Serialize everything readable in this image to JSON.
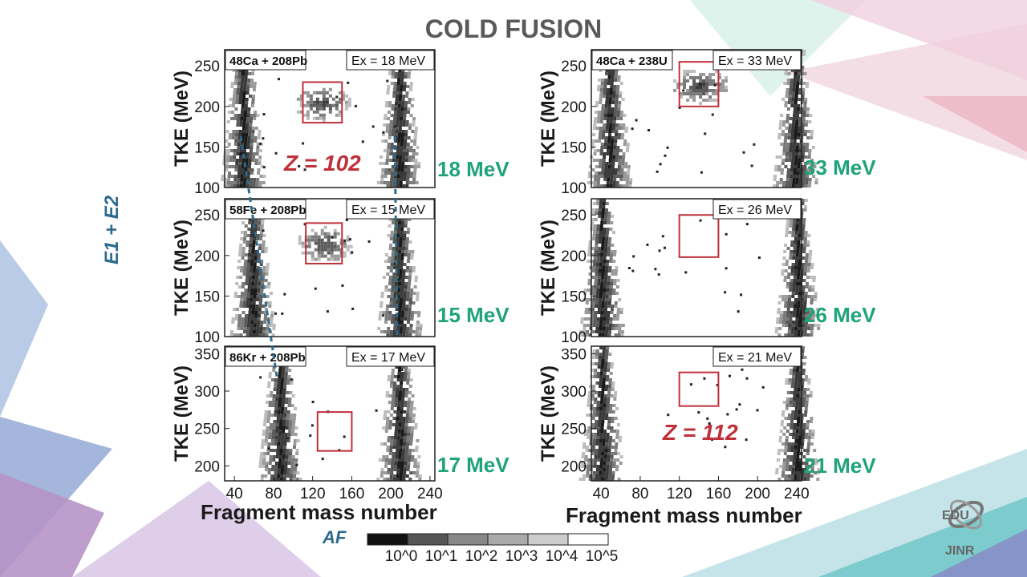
{
  "slide": {
    "title": "COLD FUSION",
    "y_axis_annotation": "E1 + E2",
    "x_axis_annotation": "AF",
    "logo_text_top": "EDU",
    "logo_text_bottom": "JINR"
  },
  "colorbar": {
    "ticks": [
      "10^0",
      "10^1",
      "10^2",
      "10^3",
      "10^4",
      "10^5"
    ],
    "colors": [
      "#111111",
      "#555555",
      "#888888",
      "#aaaaaa",
      "#cccccc",
      "#ffffff"
    ]
  },
  "labels": {
    "z102": "Z = 102",
    "z112": "Z = 112",
    "x_left": "Fragment mass number",
    "x_right": "Fragment mass number"
  },
  "chart_data": [
    {
      "type": "heatmap",
      "reaction": "48Ca + 208Pb",
      "ex_label": "Ex = 18 MeV",
      "energy": "18 MeV",
      "ylabel": "TKE (MeV)",
      "xlim": [
        30,
        245
      ],
      "ylim": [
        100,
        270
      ],
      "yticks": [
        100,
        150,
        200,
        250
      ],
      "xticks": [],
      "peaks_x": [
        48,
        208
      ],
      "center_blob": true,
      "box": {
        "x": [
          110,
          150
        ],
        "y": [
          180,
          230
        ]
      }
    },
    {
      "type": "heatmap",
      "reaction": "48Ca + 238U",
      "ex_label": "Ex = 33 MeV",
      "energy": "33 MeV",
      "ylabel": "TKE (MeV)",
      "xlim": [
        30,
        245
      ],
      "ylim": [
        100,
        270
      ],
      "yticks": [
        100,
        150,
        200,
        250
      ],
      "xticks": [],
      "peaks_x": [
        48,
        238
      ],
      "center_blob": true,
      "box": {
        "x": [
          120,
          160
        ],
        "y": [
          200,
          255
        ]
      }
    },
    {
      "type": "heatmap",
      "reaction": "58Fe + 208Pb",
      "ex_label": "Ex = 15 MeV",
      "energy": "15 MeV",
      "ylabel": "TKE (MeV)",
      "xlim": [
        30,
        245
      ],
      "ylim": [
        100,
        270
      ],
      "yticks": [
        100,
        150,
        200,
        250
      ],
      "xticks": [],
      "peaks_x": [
        58,
        208
      ],
      "center_blob": true,
      "box": {
        "x": [
          113,
          150
        ],
        "y": [
          190,
          240
        ]
      }
    },
    {
      "type": "heatmap",
      "reaction": "",
      "ex_label": "Ex = 26 MeV",
      "energy": "26 MeV",
      "ylabel": "TKE (MeV)",
      "xlim": [
        30,
        245
      ],
      "ylim": [
        100,
        270
      ],
      "yticks": [
        100,
        150,
        200,
        250
      ],
      "xticks": [],
      "peaks_x": [
        40,
        240
      ],
      "center_blob": false,
      "box": {
        "x": [
          120,
          160
        ],
        "y": [
          198,
          250
        ]
      }
    },
    {
      "type": "heatmap",
      "reaction": "86Kr + 208Pb",
      "ex_label": "Ex = 17 MeV",
      "energy": "17 MeV",
      "ylabel": "TKE (MeV)",
      "xlim": [
        30,
        245
      ],
      "ylim": [
        180,
        360
      ],
      "yticks": [
        200,
        250,
        300,
        350
      ],
      "xticks": [
        40,
        80,
        120,
        160,
        200,
        240
      ],
      "peaks_x": [
        86,
        208
      ],
      "center_blob": false,
      "box": {
        "x": [
          125,
          160
        ],
        "y": [
          220,
          272
        ]
      }
    },
    {
      "type": "heatmap",
      "reaction": "",
      "ex_label": "Ex = 21 MeV",
      "energy": "21 MeV",
      "ylabel": "TKE (MeV)",
      "xlim": [
        30,
        245
      ],
      "ylim": [
        180,
        360
      ],
      "yticks": [
        200,
        250,
        300,
        350
      ],
      "xticks": [
        40,
        80,
        120,
        160,
        200,
        240
      ],
      "peaks_x": [
        40,
        240
      ],
      "center_blob": false,
      "box": {
        "x": [
          120,
          160
        ],
        "y": [
          280,
          325
        ]
      }
    }
  ]
}
